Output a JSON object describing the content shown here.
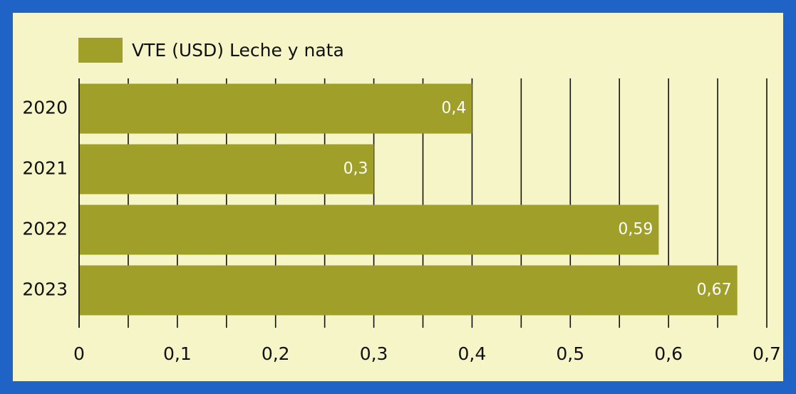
{
  "chart_data": {
    "type": "bar",
    "orientation": "horizontal",
    "categories": [
      "2020",
      "2021",
      "2022",
      "2023"
    ],
    "series": [
      {
        "name": "VTE (USD) Leche y nata",
        "color": "#a09f2a",
        "values": [
          0.4,
          0.3,
          0.59,
          0.67
        ],
        "value_labels": [
          "0,4",
          "0,3",
          "0,59",
          "0,67"
        ]
      }
    ],
    "xlim": [
      0,
      0.7
    ],
    "xticks": [
      0,
      {
        "value": 0.1,
        "label": "0,1"
      },
      {
        "value": 0.2,
        "label": "0,2"
      },
      {
        "value": 0.3,
        "label": "0,3"
      },
      {
        "value": 0.4,
        "label": "0,4"
      },
      {
        "value": 0.5,
        "label": "0,5"
      },
      {
        "value": 0.6,
        "label": "0,6"
      },
      {
        "value": 0.7,
        "label": "0,7"
      }
    ],
    "xminorticks": [
      0.05,
      0.15,
      0.25,
      0.35,
      0.45,
      0.55,
      0.65
    ],
    "grid": true,
    "legend": "top-left"
  }
}
